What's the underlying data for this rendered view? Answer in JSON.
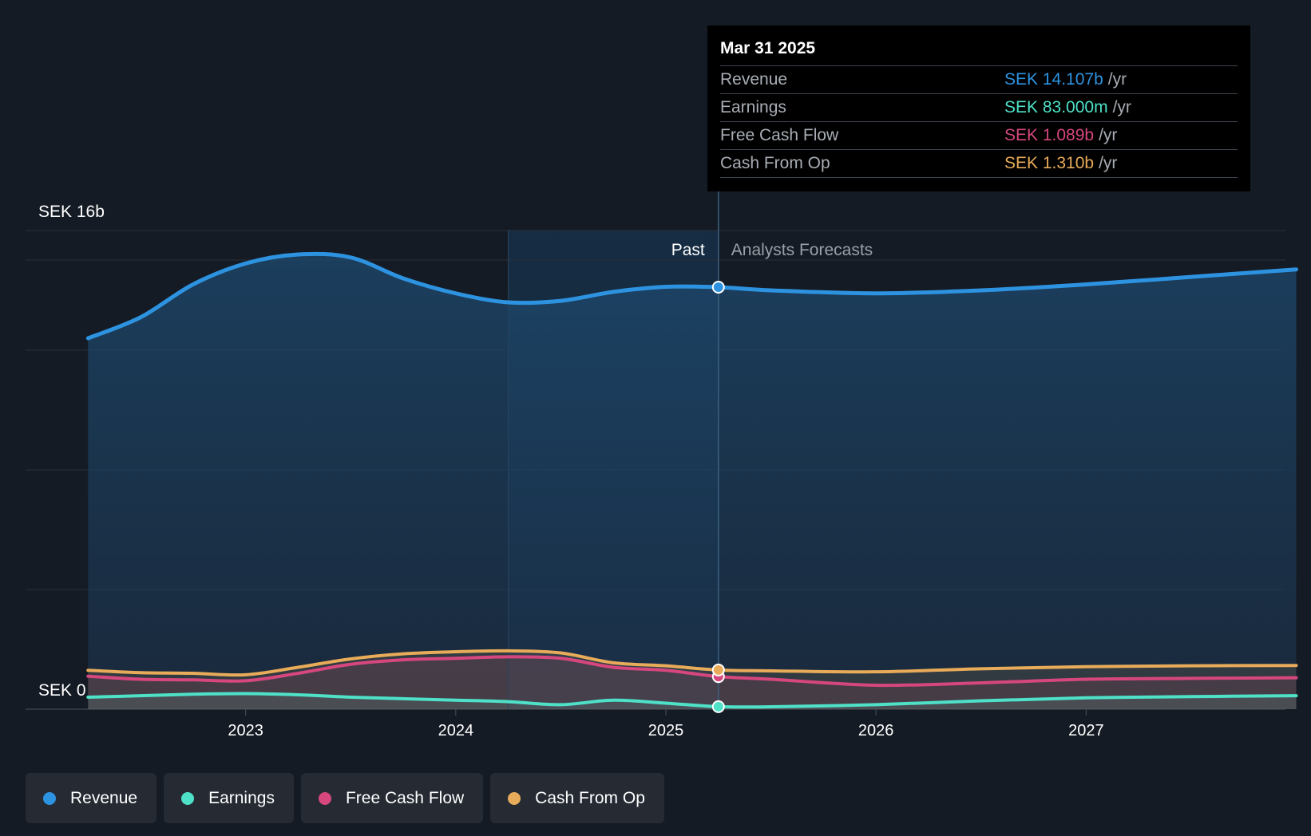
{
  "chart_data": {
    "type": "area",
    "y_axis": {
      "top_label": "SEK 16b",
      "bottom_label": "SEK 0",
      "ylim": [
        0,
        16
      ]
    },
    "x_ticks": [
      "2023",
      "2024",
      "2025",
      "2026",
      "2027"
    ],
    "regions": {
      "past_label": "Past",
      "forecast_label": "Analysts Forecasts",
      "divider_date": 2025.25
    },
    "series": [
      {
        "name": "Revenue",
        "color": "#2d93e0",
        "points": [
          [
            2022.25,
            12.4
          ],
          [
            2022.5,
            13.1
          ],
          [
            2022.75,
            14.2
          ],
          [
            2023.0,
            14.9
          ],
          [
            2023.25,
            15.2
          ],
          [
            2023.5,
            15.1
          ],
          [
            2023.75,
            14.4
          ],
          [
            2024.0,
            13.9
          ],
          [
            2024.25,
            13.6
          ],
          [
            2024.5,
            13.65
          ],
          [
            2024.75,
            13.95
          ],
          [
            2025.0,
            14.12
          ],
          [
            2025.25,
            14.107
          ],
          [
            2025.5,
            14.0
          ],
          [
            2026.0,
            13.9
          ],
          [
            2026.5,
            14.0
          ],
          [
            2027.0,
            14.2
          ],
          [
            2027.5,
            14.45
          ],
          [
            2028.0,
            14.7
          ]
        ]
      },
      {
        "name": "Earnings",
        "color": "#4ee1c8",
        "points": [
          [
            2022.25,
            0.4
          ],
          [
            2022.5,
            0.45
          ],
          [
            2022.75,
            0.5
          ],
          [
            2023.0,
            0.52
          ],
          [
            2023.25,
            0.48
          ],
          [
            2023.5,
            0.4
          ],
          [
            2023.75,
            0.35
          ],
          [
            2024.0,
            0.3
          ],
          [
            2024.25,
            0.25
          ],
          [
            2024.5,
            0.15
          ],
          [
            2024.75,
            0.3
          ],
          [
            2025.0,
            0.2
          ],
          [
            2025.25,
            0.083
          ],
          [
            2025.5,
            0.08
          ],
          [
            2026.0,
            0.15
          ],
          [
            2026.5,
            0.28
          ],
          [
            2027.0,
            0.38
          ],
          [
            2027.5,
            0.42
          ],
          [
            2028.0,
            0.45
          ]
        ]
      },
      {
        "name": "Free Cash Flow",
        "color": "#d6477e",
        "points": [
          [
            2022.25,
            1.1
          ],
          [
            2022.5,
            1.0
          ],
          [
            2022.75,
            0.98
          ],
          [
            2023.0,
            0.95
          ],
          [
            2023.25,
            1.2
          ],
          [
            2023.5,
            1.5
          ],
          [
            2023.75,
            1.65
          ],
          [
            2024.0,
            1.7
          ],
          [
            2024.25,
            1.75
          ],
          [
            2024.5,
            1.7
          ],
          [
            2024.75,
            1.4
          ],
          [
            2025.0,
            1.3
          ],
          [
            2025.25,
            1.089
          ],
          [
            2025.5,
            1.0
          ],
          [
            2026.0,
            0.8
          ],
          [
            2026.5,
            0.88
          ],
          [
            2027.0,
            1.0
          ],
          [
            2027.5,
            1.03
          ],
          [
            2028.0,
            1.05
          ]
        ]
      },
      {
        "name": "Cash From Op",
        "color": "#e8ab59",
        "points": [
          [
            2022.25,
            1.3
          ],
          [
            2022.5,
            1.22
          ],
          [
            2022.75,
            1.2
          ],
          [
            2023.0,
            1.15
          ],
          [
            2023.25,
            1.4
          ],
          [
            2023.5,
            1.68
          ],
          [
            2023.75,
            1.85
          ],
          [
            2024.0,
            1.92
          ],
          [
            2024.25,
            1.95
          ],
          [
            2024.5,
            1.88
          ],
          [
            2024.75,
            1.55
          ],
          [
            2025.0,
            1.45
          ],
          [
            2025.25,
            1.31
          ],
          [
            2025.5,
            1.28
          ],
          [
            2026.0,
            1.25
          ],
          [
            2026.5,
            1.35
          ],
          [
            2027.0,
            1.42
          ],
          [
            2027.5,
            1.45
          ],
          [
            2028.0,
            1.46
          ]
        ]
      }
    ],
    "tooltip": {
      "date": "Mar 31 2025",
      "rows": [
        {
          "label": "Revenue",
          "value": "SEK 14.107b",
          "unit": "/yr",
          "color": "#2d93e0"
        },
        {
          "label": "Earnings",
          "value": "SEK 83.000m",
          "unit": "/yr",
          "color": "#4ee1c8"
        },
        {
          "label": "Free Cash Flow",
          "value": "SEK 1.089b",
          "unit": "/yr",
          "color": "#d6477e"
        },
        {
          "label": "Cash From Op",
          "value": "SEK 1.310b",
          "unit": "/yr",
          "color": "#e8ab59"
        }
      ]
    },
    "legend": [
      {
        "label": "Revenue",
        "color": "#2d93e0"
      },
      {
        "label": "Earnings",
        "color": "#4ee1c8"
      },
      {
        "label": "Free Cash Flow",
        "color": "#d6477e"
      },
      {
        "label": "Cash From Op",
        "color": "#e8ab59"
      }
    ]
  }
}
